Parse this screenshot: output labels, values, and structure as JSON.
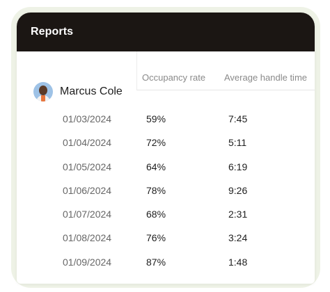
{
  "header": {
    "title": "Reports"
  },
  "columns": {
    "occupancy": "Occupancy rate",
    "handle_time": "Average handle time"
  },
  "agent": {
    "name": "Marcus Cole",
    "avatar_icon": "user-avatar-icon"
  },
  "rows": [
    {
      "date": "01/03/2024",
      "occupancy": "59%",
      "handle_time": "7:45"
    },
    {
      "date": "01/04/2024",
      "occupancy": "72%",
      "handle_time": "5:11"
    },
    {
      "date": "01/05/2024",
      "occupancy": "64%",
      "handle_time": "6:19"
    },
    {
      "date": "01/06/2024",
      "occupancy": "78%",
      "handle_time": "9:26"
    },
    {
      "date": "01/07/2024",
      "occupancy": "68%",
      "handle_time": "2:31"
    },
    {
      "date": "01/08/2024",
      "occupancy": "76%",
      "handle_time": "3:24"
    },
    {
      "date": "01/09/2024",
      "occupancy": "87%",
      "handle_time": "1:48"
    }
  ],
  "colors": {
    "header_bg": "#1b1613",
    "halo": "#eef2e6",
    "avatar_bg": "#9ec2e6"
  }
}
